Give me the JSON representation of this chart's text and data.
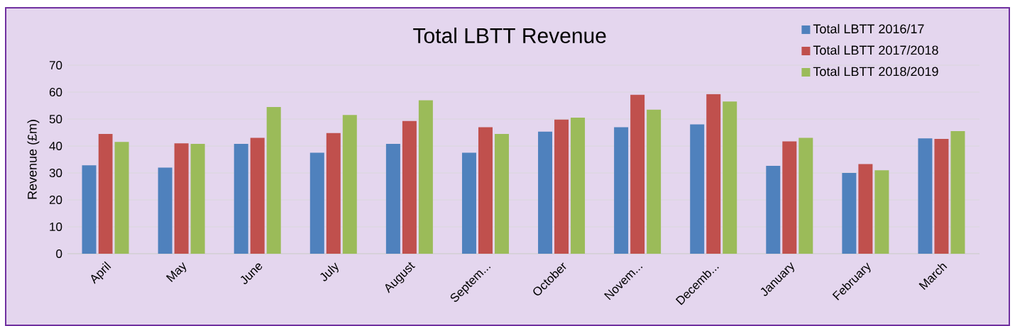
{
  "chart_data": {
    "type": "bar",
    "title": "Total LBTT Revenue",
    "ylabel": "Revenue (£m)",
    "categories": [
      "April",
      "May",
      "June",
      "July",
      "August",
      "Septem...",
      "October",
      "Novem...",
      "Decemb...",
      "January",
      "February",
      "March"
    ],
    "series": [
      {
        "name": "Total LBTT 2016/17",
        "color": "#4f81bd",
        "values": [
          32.8,
          32,
          40.8,
          37.5,
          40.8,
          37.5,
          45.3,
          47,
          48,
          32.6,
          30,
          42.8
        ]
      },
      {
        "name": "Total LBTT 2017/2018",
        "color": "#c0504d",
        "values": [
          44.5,
          41,
          43,
          44.8,
          49.3,
          47,
          49.8,
          59,
          59.3,
          41.7,
          33.3,
          42.6
        ]
      },
      {
        "name": "Total LBTT 2018/2019",
        "color": "#9bbb59",
        "values": [
          41.5,
          40.8,
          54.5,
          51.5,
          57,
          44.5,
          50.5,
          53.5,
          56.5,
          43,
          31,
          45.5
        ]
      }
    ],
    "ylim": [
      0,
      70
    ],
    "yticks": [
      0,
      10,
      20,
      30,
      40,
      50,
      60,
      70
    ],
    "grid": "y",
    "legend": "top right"
  }
}
